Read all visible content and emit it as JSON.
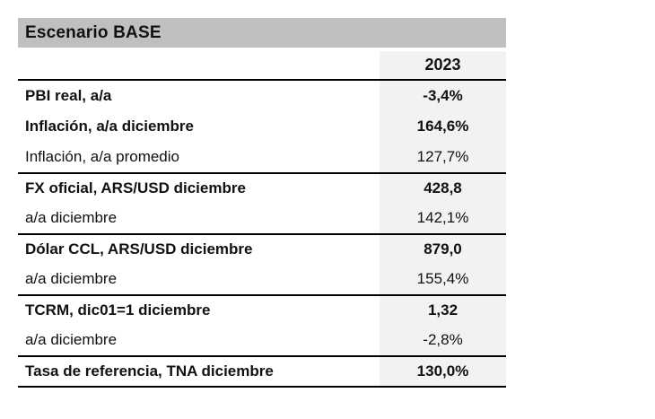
{
  "table": {
    "title": "Escenario BASE",
    "column_header": "2023",
    "rows": [
      {
        "label": "PBI real, a/a",
        "value": "-3,4%",
        "bold": true,
        "rule_above": false
      },
      {
        "label": "Inflación, a/a diciembre",
        "value": "164,6%",
        "bold": true,
        "rule_above": false
      },
      {
        "label": "Inflación, a/a promedio",
        "value": "127,7%",
        "bold": false,
        "rule_above": false
      },
      {
        "label": "FX oficial, ARS/USD diciembre",
        "value": "428,8",
        "bold": true,
        "rule_above": true
      },
      {
        "label": "a/a diciembre",
        "value": "142,1%",
        "bold": false,
        "rule_above": false
      },
      {
        "label": "Dólar CCL, ARS/USD diciembre",
        "value": "879,0",
        "bold": true,
        "rule_above": true
      },
      {
        "label": "a/a diciembre",
        "value": "155,4%",
        "bold": false,
        "rule_above": false
      },
      {
        "label": "TCRM, dic01=1 diciembre",
        "value": "1,32",
        "bold": true,
        "rule_above": true
      },
      {
        "label": "a/a diciembre",
        "value": "-2,8%",
        "bold": false,
        "rule_above": false
      },
      {
        "label": "Tasa de referencia, TNA diciembre",
        "value": "130,0%",
        "bold": true,
        "rule_above": true
      }
    ],
    "colors": {
      "title_bar_bg": "#bfbfbf",
      "value_column_bg": "#f2f2f2",
      "rule": "#000000",
      "text": "#111111"
    }
  }
}
